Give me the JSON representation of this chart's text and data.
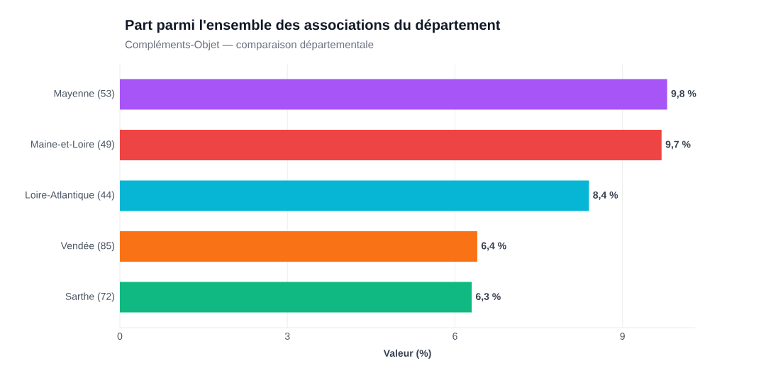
{
  "chart_data": {
    "type": "bar",
    "orientation": "horizontal",
    "title": "Part parmi l'ensemble des associations du département",
    "subtitle": "Compléments-Objet — comparaison départementale",
    "xlabel": "Valeur (%)",
    "categories": [
      "Mayenne (53)",
      "Maine-et-Loire (49)",
      "Loire-Atlantique (44)",
      "Vendée (85)",
      "Sarthe (72)"
    ],
    "values": [
      9.8,
      9.7,
      8.4,
      6.4,
      6.3
    ],
    "value_labels": [
      "9,8 %",
      "9,7 %",
      "8,4 %",
      "6,4 %",
      "6,3 %"
    ],
    "colors": [
      "#a855f7",
      "#ef4444",
      "#06b6d4",
      "#f97316",
      "#10b981"
    ],
    "xlim": [
      0,
      10.3
    ],
    "xticks": [
      0,
      3,
      6,
      9
    ],
    "grid": "x"
  }
}
